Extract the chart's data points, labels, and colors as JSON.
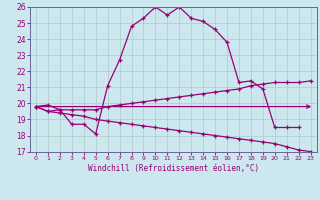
{
  "bg_color": "#cce8ee",
  "line_color": "#990077",
  "grid_color": "#aacccc",
  "spine_color": "#666699",
  "xlim": [
    -0.5,
    23.5
  ],
  "ylim": [
    17,
    26
  ],
  "xticks": [
    0,
    1,
    2,
    3,
    4,
    5,
    6,
    7,
    8,
    9,
    10,
    11,
    12,
    13,
    14,
    15,
    16,
    17,
    18,
    19,
    20,
    21,
    22,
    23
  ],
  "yticks": [
    17,
    18,
    19,
    20,
    21,
    22,
    23,
    24,
    25,
    26
  ],
  "xlabel": "Windchill (Refroidissement éolien,°C)",
  "line1_x": [
    0,
    1,
    2,
    3,
    4,
    5,
    6,
    7,
    8,
    9,
    10,
    11,
    12,
    13,
    14,
    15,
    16,
    17,
    18,
    19,
    20,
    21,
    22
  ],
  "line1_y": [
    19.8,
    19.9,
    19.6,
    18.7,
    18.7,
    18.1,
    21.1,
    22.7,
    24.8,
    25.3,
    26.0,
    25.5,
    26.0,
    25.3,
    25.1,
    24.6,
    23.8,
    21.3,
    21.4,
    20.9,
    18.5,
    18.5,
    18.5
  ],
  "line2_x": [
    0,
    1,
    2,
    3,
    4,
    5,
    6,
    7,
    8,
    9,
    10,
    11,
    12,
    13,
    14,
    15,
    16,
    17,
    18,
    19,
    20,
    21,
    22,
    23
  ],
  "line2_y": [
    19.8,
    19.5,
    19.6,
    19.6,
    19.6,
    19.6,
    19.8,
    19.9,
    20.0,
    20.1,
    20.2,
    20.3,
    20.4,
    20.5,
    20.6,
    20.7,
    20.8,
    20.9,
    21.1,
    21.2,
    21.3,
    21.3,
    21.3,
    21.4
  ],
  "line3_x": [
    0,
    1,
    2,
    3,
    4,
    5,
    6,
    7,
    8,
    9,
    10,
    11,
    12,
    13,
    14,
    15,
    16,
    17,
    18,
    19,
    20,
    21,
    22,
    23
  ],
  "line3_y": [
    19.8,
    19.5,
    19.4,
    19.3,
    19.2,
    19.0,
    18.9,
    18.8,
    18.7,
    18.6,
    18.5,
    18.4,
    18.3,
    18.2,
    18.1,
    18.0,
    17.9,
    17.8,
    17.7,
    17.6,
    17.5,
    17.3,
    17.1,
    17.0
  ],
  "line4_x": [
    0,
    23
  ],
  "line4_y": [
    19.8,
    19.8
  ]
}
